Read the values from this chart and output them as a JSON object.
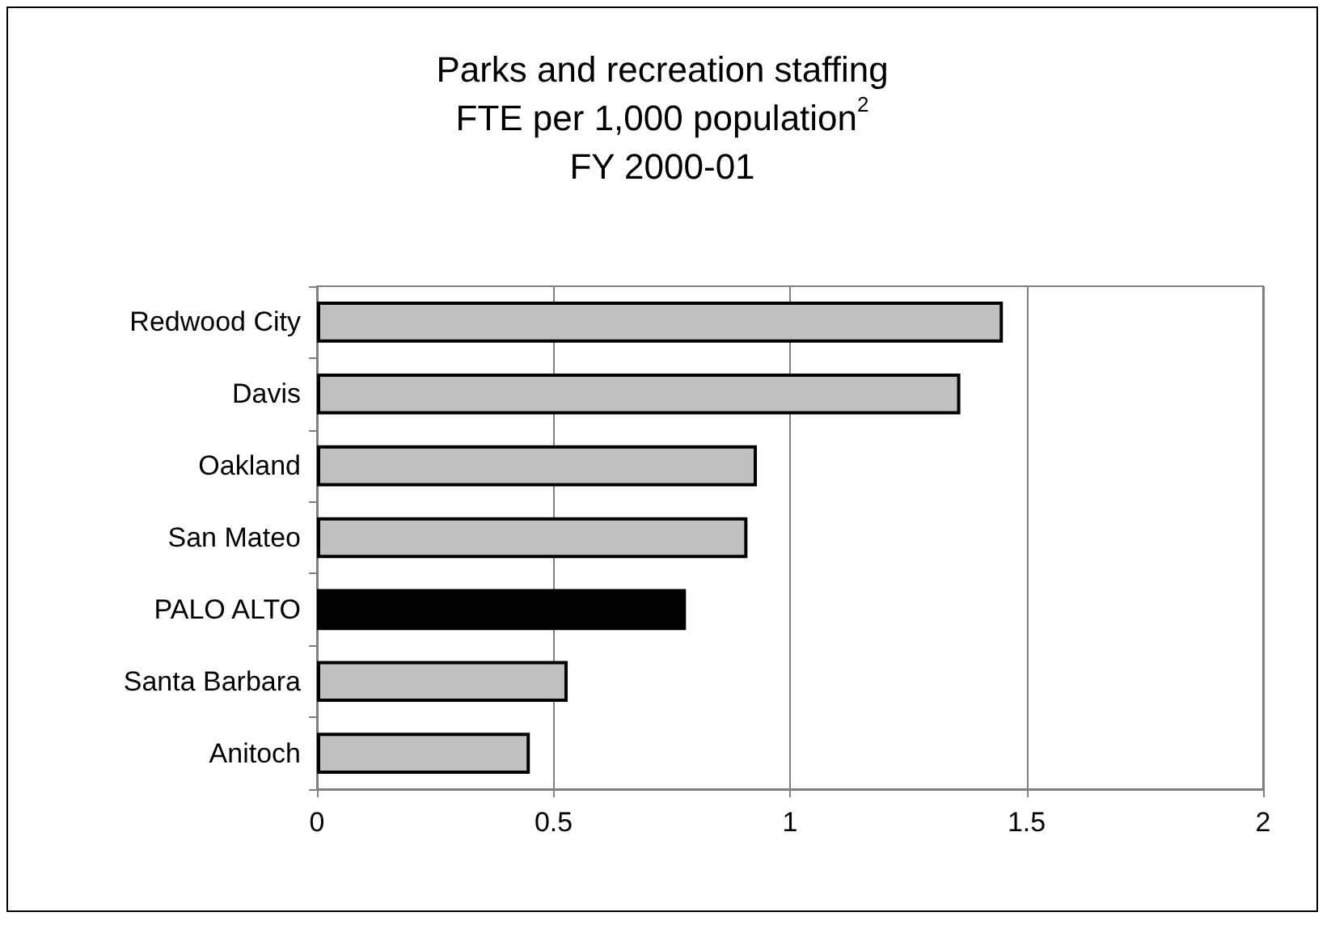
{
  "chart_data": {
    "type": "bar",
    "orientation": "horizontal",
    "title": "Parks and recreation staffing\nFTE per 1,000 population$^{2}$\nFY 2000-01",
    "categories": [
      "Redwood City",
      "Davis",
      "Oakland",
      "San Mateo",
      "PALO ALTO",
      "Santa Barbara",
      "Anitoch"
    ],
    "values": [
      1.45,
      1.36,
      0.93,
      0.91,
      0.78,
      0.53,
      0.45
    ],
    "colors": [
      "#c0c0c0",
      "#c0c0c0",
      "#c0c0c0",
      "#c0c0c0",
      "#000000",
      "#c0c0c0",
      "#c0c0c0"
    ],
    "xlim": [
      0,
      2
    ],
    "xticks": [
      0,
      0.5,
      1,
      1.5,
      2
    ],
    "grid": "x"
  }
}
